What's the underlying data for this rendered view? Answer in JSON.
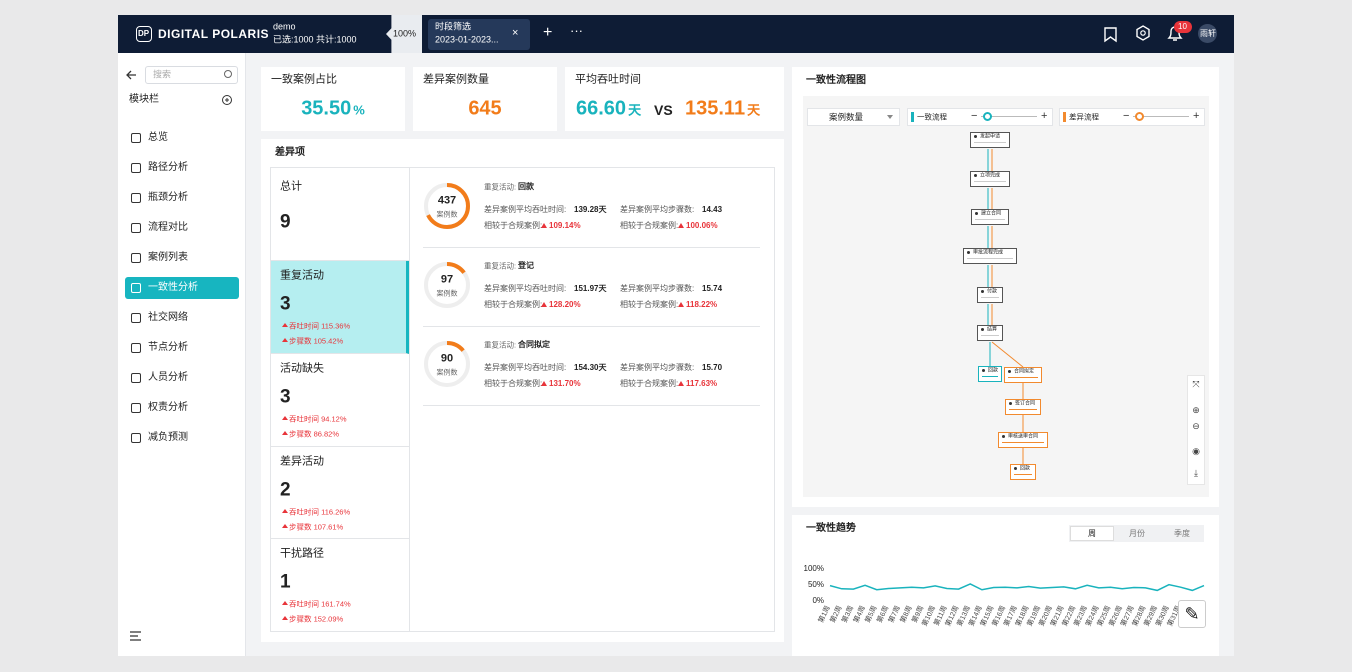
{
  "header": {
    "brand": "DIGITAL POLARIS",
    "logo": "DP",
    "project": "demo",
    "selection": "已选:1000 共计:1000",
    "zoom": "100%",
    "tab_title": "时段筛选",
    "tab_range": "2023-01-2023...",
    "badge": "10",
    "user": "雨轩"
  },
  "sidebar": {
    "search": "搜索",
    "section": "模块栏",
    "items": [
      "总览",
      "路径分析",
      "瓶颈分析",
      "流程对比",
      "案例列表",
      "一致性分析",
      "社交网络",
      "节点分析",
      "人员分析",
      "权责分析",
      "减负预测"
    ],
    "active": 5
  },
  "kpis": [
    {
      "label": "一致案例占比",
      "value": "35.50",
      "unit": "%",
      "color": "#19b3bd"
    },
    {
      "label": "差异案例数量",
      "value": 645,
      "color": "#f27c1a"
    },
    {
      "label": "平均吞吐时间",
      "value": "66.60",
      "unit": "天",
      "color": "#19b3bd",
      "vs": "VS",
      "value2": "135.11",
      "unit2": "天",
      "color2": "#f27c1a"
    }
  ],
  "diff": {
    "title": "差异项",
    "active": 1,
    "categories": [
      {
        "name": "总计",
        "count": 9,
        "metrics": []
      },
      {
        "name": "重复活动",
        "count": 3,
        "metrics": [
          "吞吐时间 115.36%",
          "步骤数 105.42%"
        ]
      },
      {
        "name": "活动缺失",
        "count": 3,
        "metrics": [
          "吞吐时间 94.12%",
          "步骤数 86.82%"
        ]
      },
      {
        "name": "差异活动",
        "count": 2,
        "metrics": [
          "吞吐时间 116.26%",
          "步骤数 107.61%"
        ]
      },
      {
        "name": "干扰路径",
        "count": 1,
        "metrics": [
          "吞吐时间 161.74%",
          "步骤数 152.09%"
        ]
      }
    ],
    "labels": {
      "cases": "案例数",
      "activity": "重复活动:",
      "time": "差异案例平均吞吐时间:",
      "steps": "差异案例平均步骤数:",
      "compare": "相较于合规案例:"
    },
    "items": [
      {
        "count": 437,
        "activity": "回款",
        "time": "139.28天",
        "steps": "14.43",
        "time_ratio": "109.14%",
        "steps_ratio": "100.06%"
      },
      {
        "count": 97,
        "activity": "登记",
        "time": "151.97天",
        "steps": "15.74",
        "time_ratio": "128.20%",
        "steps_ratio": "118.22%"
      },
      {
        "count": 90,
        "activity": "合同拟定",
        "time": "154.30天",
        "steps": "15.70",
        "time_ratio": "131.70%",
        "steps_ratio": "117.63%"
      }
    ]
  },
  "flow": {
    "title": "一致性流程图",
    "metric": "案例数量",
    "legend": [
      {
        "name": "一致流程",
        "color": "#19b3bd"
      },
      {
        "name": "差异流程",
        "color": "#f28a2e"
      }
    ],
    "nodes": [
      {
        "label": "发起申请",
        "color": "#555555"
      },
      {
        "label": "立项完成",
        "color": "#555555"
      },
      {
        "label": "建立合同",
        "color": "#555555"
      },
      {
        "label": "审批流程完成",
        "color": "#555555"
      },
      {
        "label": "付款",
        "color": "#555555"
      },
      {
        "label": "结算",
        "color": "#555555"
      },
      {
        "label": "回款",
        "color": "#19b3bd"
      },
      {
        "label": "合同拟定",
        "color": "#f28a2e"
      },
      {
        "label": "签订合同",
        "color": "#f28a2e"
      },
      {
        "label": "审核送审合同",
        "color": "#f28a2e"
      },
      {
        "label": "回款",
        "color": "#f28a2e"
      }
    ]
  },
  "trend": {
    "type": "line",
    "title": "一致性趋势",
    "tabs": [
      "周",
      "月份",
      "季度"
    ],
    "active_tab": 0,
    "color": "#19b3bd",
    "categories": [
      "第1周",
      "第2周",
      "第3周",
      "第4周",
      "第5周",
      "第6周",
      "第7周",
      "第8周",
      "第9周",
      "第10周",
      "第11周",
      "第12周",
      "第13周",
      "第14周",
      "第15周",
      "第16周",
      "第17周",
      "第18周",
      "第19周",
      "第20周",
      "第21周",
      "第22周",
      "第23周",
      "第24周",
      "第25周",
      "第26周",
      "第27周",
      "第28周",
      "第29周",
      "第30周",
      "第31周",
      "第32周",
      "第33周"
    ],
    "values": [
      45,
      35,
      34,
      46,
      32,
      36,
      38,
      40,
      38,
      44,
      36,
      34,
      50,
      32,
      39,
      40,
      38,
      42,
      37,
      39,
      41,
      35,
      46,
      38,
      40,
      35,
      39,
      38,
      30,
      48,
      40,
      30,
      45
    ],
    "ylim": [
      0,
      100
    ],
    "yticks": [
      {
        "value": 0,
        "label": "0%"
      },
      {
        "value": 50,
        "label": "50%"
      },
      {
        "value": 100,
        "label": "100%"
      }
    ]
  }
}
